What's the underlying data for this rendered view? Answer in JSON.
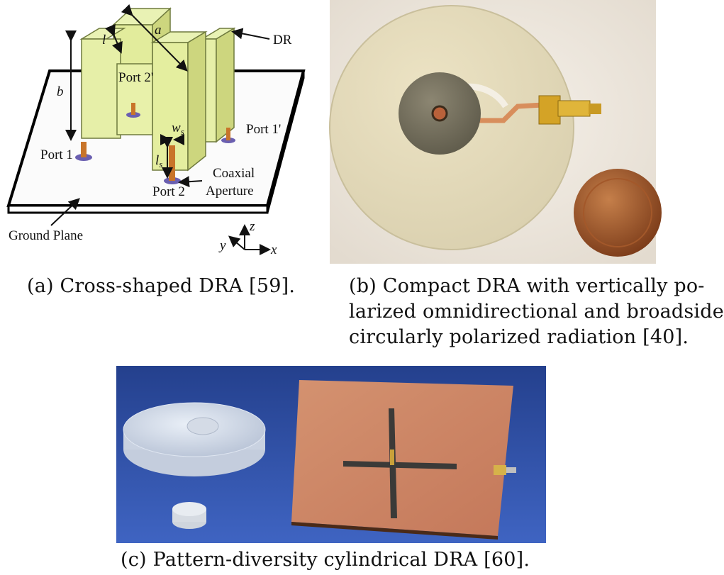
{
  "figure_a": {
    "labels": {
      "dr": "DR",
      "a": "a",
      "l": "l",
      "b": "b",
      "port1": "Port 1",
      "port1p": "Port 1'",
      "port2": "Port 2",
      "port2p": "Port 2'",
      "ws_main": "w",
      "ws_sub": "s",
      "ls_main": "l",
      "ls_sub": "s",
      "coaxial": "Coaxial",
      "aperture": "Aperture",
      "ground": "Ground Plane",
      "axis_x": "x",
      "axis_y": "y",
      "axis_z": "z"
    },
    "caption": "(a) Cross-shaped DRA [59]."
  },
  "figure_b": {
    "caption_lines": [
      "(b) Compact DRA with vertically po-",
      "larized omnidirectional and broadside",
      "circularly polarized radiation [40]."
    ]
  },
  "figure_c": {
    "caption": "(c) Pattern-diversity cylindrical DRA [60]."
  }
}
